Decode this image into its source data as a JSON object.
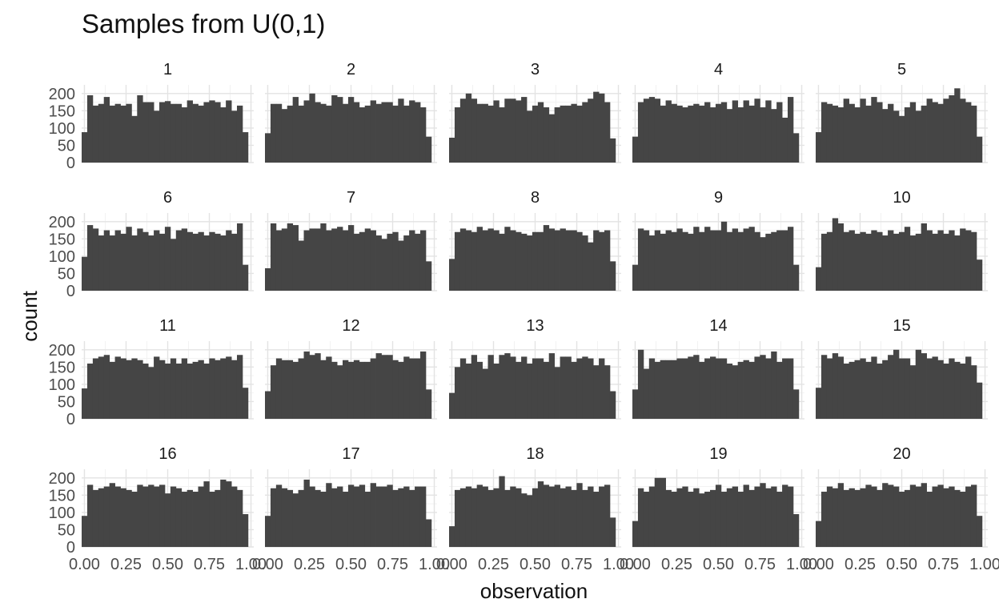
{
  "chart_data": {
    "type": "bar",
    "title": "Samples from U(0,1)",
    "xlabel": "observation",
    "ylabel": "count",
    "xlim": [
      -0.0167,
      1.0167
    ],
    "ylim": [
      0,
      225
    ],
    "bins": 30,
    "bin_width": 0.0333,
    "x_ticks": [
      0,
      0.25,
      0.5,
      0.75,
      1
    ],
    "x_tick_labels": [
      "0.00",
      "0.25",
      "0.50",
      "0.75",
      "1.00"
    ],
    "y_ticks": [
      0,
      50,
      100,
      150,
      200
    ],
    "y_tick_labels": [
      "0",
      "50",
      "100",
      "150",
      "200"
    ],
    "grid": true,
    "facets": [
      {
        "label": "1",
        "values": [
          88,
          195,
          165,
          170,
          190,
          165,
          170,
          165,
          170,
          135,
          195,
          175,
          175,
          150,
          175,
          178,
          170,
          170,
          160,
          180,
          170,
          165,
          175,
          180,
          175,
          160,
          180,
          150,
          165,
          88
        ]
      },
      {
        "label": "2",
        "values": [
          85,
          170,
          170,
          155,
          165,
          190,
          165,
          180,
          200,
          175,
          170,
          165,
          195,
          190,
          170,
          190,
          175,
          160,
          165,
          180,
          170,
          175,
          175,
          165,
          185,
          165,
          180,
          175,
          160,
          75
        ]
      },
      {
        "label": "3",
        "values": [
          72,
          160,
          185,
          200,
          185,
          170,
          170,
          165,
          180,
          160,
          185,
          185,
          180,
          190,
          150,
          165,
          175,
          160,
          140,
          160,
          165,
          165,
          170,
          165,
          175,
          185,
          205,
          200,
          175,
          70
        ]
      },
      {
        "label": "4",
        "values": [
          75,
          175,
          185,
          190,
          185,
          165,
          180,
          170,
          165,
          160,
          165,
          170,
          165,
          175,
          160,
          170,
          175,
          155,
          180,
          160,
          180,
          165,
          185,
          160,
          180,
          155,
          175,
          130,
          190,
          85
        ]
      },
      {
        "label": "5",
        "values": [
          88,
          175,
          170,
          165,
          160,
          185,
          170,
          160,
          185,
          165,
          190,
          175,
          155,
          170,
          150,
          135,
          160,
          175,
          150,
          165,
          185,
          175,
          170,
          185,
          195,
          215,
          185,
          175,
          165,
          75
        ]
      },
      {
        "label": "6",
        "values": [
          98,
          190,
          180,
          160,
          175,
          160,
          175,
          165,
          185,
          160,
          180,
          170,
          160,
          175,
          165,
          185,
          150,
          175,
          180,
          170,
          165,
          170,
          160,
          170,
          165,
          160,
          175,
          165,
          195,
          75
        ]
      },
      {
        "label": "7",
        "values": [
          65,
          195,
          175,
          180,
          195,
          190,
          145,
          175,
          180,
          180,
          195,
          175,
          180,
          185,
          175,
          190,
          165,
          170,
          180,
          175,
          160,
          150,
          165,
          170,
          145,
          160,
          175,
          165,
          175,
          85
        ]
      },
      {
        "label": "8",
        "values": [
          92,
          170,
          180,
          175,
          170,
          185,
          175,
          180,
          175,
          165,
          185,
          175,
          170,
          165,
          160,
          170,
          170,
          190,
          180,
          175,
          180,
          175,
          175,
          170,
          160,
          140,
          175,
          170,
          175,
          85
        ]
      },
      {
        "label": "9",
        "values": [
          75,
          180,
          175,
          160,
          175,
          165,
          175,
          170,
          180,
          170,
          165,
          185,
          170,
          185,
          175,
          175,
          200,
          170,
          180,
          170,
          180,
          185,
          170,
          155,
          165,
          170,
          175,
          175,
          185,
          75
        ]
      },
      {
        "label": "10",
        "values": [
          68,
          165,
          170,
          210,
          195,
          170,
          175,
          165,
          170,
          165,
          175,
          170,
          160,
          175,
          165,
          170,
          185,
          160,
          165,
          195,
          175,
          165,
          175,
          165,
          175,
          160,
          180,
          175,
          170,
          90
        ]
      },
      {
        "label": "11",
        "values": [
          88,
          160,
          175,
          180,
          185,
          165,
          180,
          175,
          170,
          175,
          170,
          160,
          150,
          180,
          170,
          160,
          175,
          160,
          175,
          160,
          165,
          170,
          160,
          175,
          170,
          175,
          180,
          170,
          185,
          90
        ]
      },
      {
        "label": "12",
        "values": [
          80,
          155,
          175,
          170,
          170,
          165,
          175,
          195,
          185,
          190,
          170,
          180,
          165,
          155,
          170,
          165,
          170,
          165,
          165,
          175,
          190,
          185,
          185,
          170,
          165,
          180,
          175,
          175,
          195,
          85
        ]
      },
      {
        "label": "13",
        "values": [
          75,
          150,
          175,
          160,
          185,
          165,
          145,
          185,
          160,
          185,
          190,
          180,
          165,
          180,
          160,
          175,
          175,
          165,
          190,
          150,
          180,
          180,
          165,
          175,
          180,
          175,
          155,
          175,
          155,
          80
        ]
      },
      {
        "label": "14",
        "values": [
          85,
          200,
          145,
          175,
          165,
          170,
          170,
          170,
          175,
          175,
          180,
          185,
          165,
          175,
          180,
          175,
          175,
          160,
          155,
          165,
          170,
          165,
          180,
          185,
          175,
          195,
          165,
          175,
          175,
          85
        ]
      },
      {
        "label": "15",
        "values": [
          90,
          185,
          175,
          190,
          180,
          160,
          165,
          170,
          175,
          165,
          180,
          160,
          170,
          185,
          200,
          175,
          175,
          155,
          200,
          190,
          175,
          180,
          170,
          160,
          175,
          165,
          160,
          180,
          155,
          105
        ]
      },
      {
        "label": "16",
        "values": [
          90,
          180,
          165,
          170,
          175,
          185,
          175,
          170,
          165,
          160,
          180,
          175,
          180,
          175,
          180,
          155,
          175,
          170,
          160,
          165,
          160,
          175,
          190,
          160,
          165,
          195,
          190,
          175,
          165,
          95
        ]
      },
      {
        "label": "17",
        "values": [
          90,
          170,
          180,
          170,
          165,
          155,
          165,
          195,
          175,
          165,
          160,
          185,
          170,
          175,
          160,
          180,
          175,
          180,
          160,
          185,
          175,
          175,
          180,
          165,
          170,
          175,
          165,
          175,
          175,
          80
        ]
      },
      {
        "label": "18",
        "values": [
          60,
          165,
          170,
          175,
          170,
          180,
          175,
          165,
          170,
          205,
          165,
          175,
          170,
          155,
          150,
          170,
          190,
          180,
          175,
          180,
          170,
          175,
          165,
          185,
          165,
          175,
          160,
          175,
          180,
          85
        ]
      },
      {
        "label": "19",
        "values": [
          75,
          170,
          160,
          175,
          200,
          200,
          165,
          160,
          170,
          175,
          160,
          170,
          155,
          160,
          165,
          180,
          160,
          170,
          175,
          160,
          180,
          165,
          175,
          185,
          170,
          175,
          160,
          180,
          175,
          95
        ]
      },
      {
        "label": "20",
        "values": [
          75,
          160,
          175,
          170,
          185,
          165,
          170,
          165,
          170,
          180,
          175,
          165,
          185,
          180,
          175,
          160,
          165,
          180,
          175,
          185,
          160,
          175,
          180,
          170,
          175,
          165,
          160,
          175,
          180,
          90
        ]
      }
    ]
  }
}
